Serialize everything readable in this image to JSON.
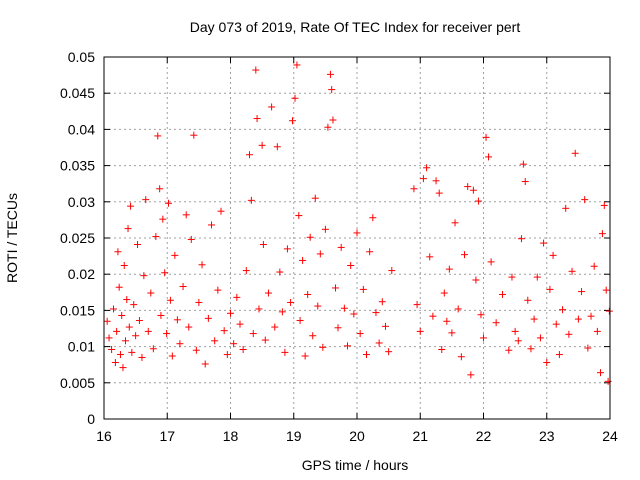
{
  "chart_data": {
    "type": "scatter",
    "title": "Day 073 of 2019, Rate Of TEC Index for receiver pert",
    "xlabel": "GPS time / hours",
    "ylabel": "ROTI / TECUs",
    "xlim": [
      16,
      24
    ],
    "ylim": [
      0,
      0.05
    ],
    "x_ticks": [
      "16",
      "17",
      "18",
      "19",
      "20",
      "21",
      "22",
      "23",
      "24"
    ],
    "y_ticks": [
      "0",
      "0.005",
      "0.01",
      "0.015",
      "0.02",
      "0.025",
      "0.03",
      "0.035",
      "0.04",
      "0.045",
      "0.05"
    ],
    "grid": true,
    "marker": "plus",
    "color": "#ff0000",
    "series": [
      {
        "points": [
          [
            16.05,
            0.0135
          ],
          [
            16.08,
            0.0112
          ],
          [
            16.12,
            0.0096
          ],
          [
            16.15,
            0.0152
          ],
          [
            16.18,
            0.0078
          ],
          [
            16.2,
            0.0121
          ],
          [
            16.22,
            0.0231
          ],
          [
            16.24,
            0.0182
          ],
          [
            16.26,
            0.0089
          ],
          [
            16.28,
            0.0143
          ],
          [
            16.3,
            0.0071
          ],
          [
            16.32,
            0.0212
          ],
          [
            16.34,
            0.0108
          ],
          [
            16.36,
            0.0165
          ],
          [
            16.38,
            0.0263
          ],
          [
            16.4,
            0.0127
          ],
          [
            16.42,
            0.0294
          ],
          [
            16.44,
            0.0092
          ],
          [
            16.47,
            0.0158
          ],
          [
            16.5,
            0.0115
          ],
          [
            16.53,
            0.0241
          ],
          [
            16.56,
            0.0136
          ],
          [
            16.6,
            0.0085
          ],
          [
            16.63,
            0.0198
          ],
          [
            16.66,
            0.0303
          ],
          [
            16.7,
            0.0121
          ],
          [
            16.74,
            0.0174
          ],
          [
            16.78,
            0.0097
          ],
          [
            16.82,
            0.0252
          ],
          [
            16.85,
            0.0391
          ],
          [
            16.88,
            0.0318
          ],
          [
            16.9,
            0.0143
          ],
          [
            16.93,
            0.0276
          ],
          [
            16.96,
            0.0202
          ],
          [
            16.99,
            0.0118
          ],
          [
            17.02,
            0.0298
          ],
          [
            17.05,
            0.0164
          ],
          [
            17.08,
            0.0087
          ],
          [
            17.12,
            0.0226
          ],
          [
            17.16,
            0.0137
          ],
          [
            17.2,
            0.0104
          ],
          [
            17.25,
            0.0183
          ],
          [
            17.3,
            0.0282
          ],
          [
            17.34,
            0.0127
          ],
          [
            17.38,
            0.0248
          ],
          [
            17.42,
            0.0392
          ],
          [
            17.46,
            0.0095
          ],
          [
            17.5,
            0.0161
          ],
          [
            17.55,
            0.0213
          ],
          [
            17.6,
            0.0076
          ],
          [
            17.65,
            0.0139
          ],
          [
            17.7,
            0.0268
          ],
          [
            17.75,
            0.0108
          ],
          [
            17.8,
            0.0178
          ],
          [
            17.85,
            0.0287
          ],
          [
            17.9,
            0.0122
          ],
          [
            17.95,
            0.0089
          ],
          [
            18.0,
            0.0146
          ],
          [
            18.05,
            0.0104
          ],
          [
            18.1,
            0.0168
          ],
          [
            18.15,
            0.0131
          ],
          [
            18.2,
            0.0096
          ],
          [
            18.25,
            0.0205
          ],
          [
            18.3,
            0.0365
          ],
          [
            18.33,
            0.0302
          ],
          [
            18.36,
            0.0118
          ],
          [
            18.4,
            0.0482
          ],
          [
            18.42,
            0.0415
          ],
          [
            18.45,
            0.0152
          ],
          [
            18.5,
            0.0378
          ],
          [
            18.52,
            0.0241
          ],
          [
            18.55,
            0.0109
          ],
          [
            18.6,
            0.0174
          ],
          [
            18.65,
            0.0431
          ],
          [
            18.7,
            0.0127
          ],
          [
            18.74,
            0.0376
          ],
          [
            18.78,
            0.0203
          ],
          [
            18.82,
            0.0148
          ],
          [
            18.86,
            0.0092
          ],
          [
            18.9,
            0.0235
          ],
          [
            18.95,
            0.0161
          ],
          [
            18.98,
            0.0412
          ],
          [
            19.02,
            0.0443
          ],
          [
            19.05,
            0.0489
          ],
          [
            19.08,
            0.0281
          ],
          [
            19.1,
            0.0136
          ],
          [
            19.14,
            0.0219
          ],
          [
            19.18,
            0.0087
          ],
          [
            19.22,
            0.0172
          ],
          [
            19.26,
            0.0251
          ],
          [
            19.3,
            0.0115
          ],
          [
            19.34,
            0.0305
          ],
          [
            19.38,
            0.0156
          ],
          [
            19.42,
            0.0228
          ],
          [
            19.46,
            0.0099
          ],
          [
            19.5,
            0.0262
          ],
          [
            19.54,
            0.0403
          ],
          [
            19.58,
            0.0476
          ],
          [
            19.6,
            0.0455
          ],
          [
            19.62,
            0.0413
          ],
          [
            19.66,
            0.0181
          ],
          [
            19.7,
            0.0126
          ],
          [
            19.75,
            0.0237
          ],
          [
            19.8,
            0.0153
          ],
          [
            19.85,
            0.0101
          ],
          [
            19.9,
            0.0212
          ],
          [
            19.95,
            0.0145
          ],
          [
            20.0,
            0.0257
          ],
          [
            20.05,
            0.0118
          ],
          [
            20.1,
            0.0179
          ],
          [
            20.15,
            0.0089
          ],
          [
            20.2,
            0.0231
          ],
          [
            20.25,
            0.0278
          ],
          [
            20.3,
            0.0147
          ],
          [
            20.35,
            0.0105
          ],
          [
            20.4,
            0.0162
          ],
          [
            20.45,
            0.0128
          ],
          [
            20.5,
            0.0093
          ],
          [
            20.55,
            0.0205
          ],
          [
            20.9,
            0.0318
          ],
          [
            20.95,
            0.0158
          ],
          [
            21.0,
            0.0121
          ],
          [
            21.05,
            0.0332
          ],
          [
            21.1,
            0.0347
          ],
          [
            21.15,
            0.0224
          ],
          [
            21.2,
            0.0142
          ],
          [
            21.25,
            0.0329
          ],
          [
            21.3,
            0.0312
          ],
          [
            21.34,
            0.0096
          ],
          [
            21.38,
            0.0174
          ],
          [
            21.42,
            0.0135
          ],
          [
            21.46,
            0.0207
          ],
          [
            21.5,
            0.0119
          ],
          [
            21.55,
            0.0271
          ],
          [
            21.6,
            0.0152
          ],
          [
            21.65,
            0.0086
          ],
          [
            21.7,
            0.0227
          ],
          [
            21.75,
            0.0321
          ],
          [
            21.8,
            0.0061
          ],
          [
            21.84,
            0.0316
          ],
          [
            21.88,
            0.0192
          ],
          [
            21.92,
            0.0301
          ],
          [
            21.96,
            0.0144
          ],
          [
            22.0,
            0.0112
          ],
          [
            22.04,
            0.0389
          ],
          [
            22.08,
            0.0362
          ],
          [
            22.12,
            0.0217
          ],
          [
            22.2,
            0.0133
          ],
          [
            22.3,
            0.0172
          ],
          [
            22.4,
            0.0095
          ],
          [
            22.45,
            0.0196
          ],
          [
            22.5,
            0.0121
          ],
          [
            22.55,
            0.0108
          ],
          [
            22.6,
            0.0249
          ],
          [
            22.63,
            0.0352
          ],
          [
            22.66,
            0.0328
          ],
          [
            22.7,
            0.0164
          ],
          [
            22.75,
            0.0097
          ],
          [
            22.8,
            0.0138
          ],
          [
            22.85,
            0.0196
          ],
          [
            22.9,
            0.0112
          ],
          [
            22.95,
            0.0243
          ],
          [
            23.0,
            0.0078
          ],
          [
            23.05,
            0.0179
          ],
          [
            23.1,
            0.0226
          ],
          [
            23.15,
            0.0131
          ],
          [
            23.2,
            0.0089
          ],
          [
            23.25,
            0.0151
          ],
          [
            23.3,
            0.0291
          ],
          [
            23.35,
            0.0117
          ],
          [
            23.4,
            0.0204
          ],
          [
            23.45,
            0.0367
          ],
          [
            23.5,
            0.0138
          ],
          [
            23.55,
            0.0176
          ],
          [
            23.6,
            0.0303
          ],
          [
            23.65,
            0.0098
          ],
          [
            23.7,
            0.0142
          ],
          [
            23.75,
            0.0211
          ],
          [
            23.8,
            0.0121
          ],
          [
            23.85,
            0.0064
          ],
          [
            23.88,
            0.0256
          ],
          [
            23.91,
            0.0295
          ],
          [
            23.94,
            0.0178
          ],
          [
            23.97,
            0.0052
          ],
          [
            23.99,
            0.0149
          ]
        ]
      }
    ]
  }
}
